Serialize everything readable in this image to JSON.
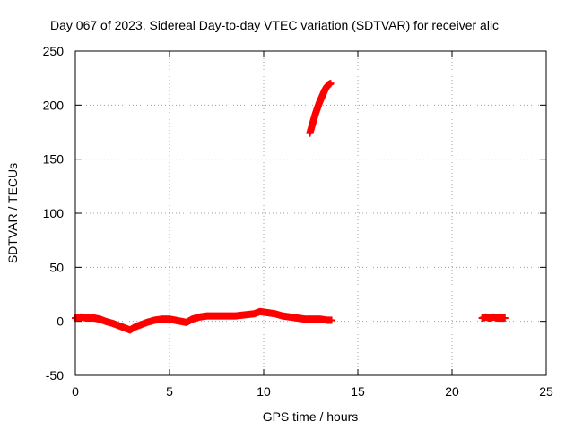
{
  "chart_data": {
    "type": "scatter",
    "title": "Day 067 of 2023, Sidereal Day-to-day VTEC variation (SDTVAR) for receiver alic",
    "xlabel": "GPS time / hours",
    "ylabel": "SDTVAR / TECUs",
    "xlim": [
      0,
      25
    ],
    "ylim": [
      -50,
      250
    ],
    "xticks": [
      "0",
      "5",
      "10",
      "15",
      "20",
      "25"
    ],
    "yticks": [
      "-50",
      "0",
      "50",
      "100",
      "150",
      "200",
      "250"
    ],
    "grid": true,
    "legend": "none",
    "marker_color": "#ff0000",
    "series": [
      {
        "values": [
          [
            0.0,
            3
          ],
          [
            0.3,
            4
          ],
          [
            0.6,
            3
          ],
          [
            1.0,
            3
          ],
          [
            1.3,
            2
          ],
          [
            1.6,
            0
          ],
          [
            2.0,
            -2
          ],
          [
            2.3,
            -4
          ],
          [
            2.6,
            -6
          ],
          [
            2.9,
            -8
          ],
          [
            3.2,
            -5
          ],
          [
            3.5,
            -3
          ],
          [
            3.8,
            -1
          ],
          [
            4.2,
            1
          ],
          [
            4.6,
            2
          ],
          [
            5.0,
            2
          ],
          [
            5.3,
            1
          ],
          [
            5.6,
            0
          ],
          [
            5.9,
            -1
          ],
          [
            6.2,
            2
          ],
          [
            6.6,
            4
          ],
          [
            7.0,
            5
          ],
          [
            7.5,
            5
          ],
          [
            8.0,
            5
          ],
          [
            8.5,
            5
          ],
          [
            9.0,
            6
          ],
          [
            9.5,
            7
          ],
          [
            9.8,
            9
          ],
          [
            10.2,
            8
          ],
          [
            10.6,
            7
          ],
          [
            11.0,
            5
          ],
          [
            11.4,
            4
          ],
          [
            11.8,
            3
          ],
          [
            12.2,
            2
          ],
          [
            12.6,
            2
          ],
          [
            13.0,
            2
          ],
          [
            13.4,
            1
          ],
          [
            13.6,
            1
          ]
        ]
      },
      {
        "values": [
          [
            12.45,
            174
          ],
          [
            12.55,
            180
          ],
          [
            12.65,
            186
          ],
          [
            12.75,
            192
          ],
          [
            12.85,
            197
          ],
          [
            12.95,
            202
          ],
          [
            13.05,
            206
          ],
          [
            13.15,
            210
          ],
          [
            13.25,
            214
          ],
          [
            13.35,
            217
          ],
          [
            13.45,
            219
          ],
          [
            13.55,
            220
          ]
        ]
      },
      {
        "values": [
          [
            21.6,
            3
          ],
          [
            21.8,
            4
          ],
          [
            22.0,
            3
          ],
          [
            22.2,
            4
          ],
          [
            22.4,
            3
          ],
          [
            22.6,
            3
          ],
          [
            22.8,
            3
          ]
        ]
      }
    ]
  }
}
